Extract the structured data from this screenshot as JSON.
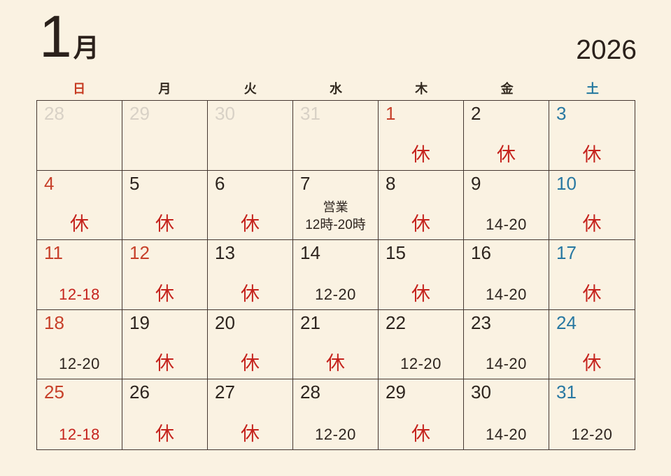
{
  "title": {
    "month": "1",
    "month_label": "月",
    "year": "2026"
  },
  "weekday_header": [
    {
      "label": "日",
      "color": "sunday"
    },
    {
      "label": "月",
      "color": "weekday"
    },
    {
      "label": "火",
      "color": "weekday"
    },
    {
      "label": "水",
      "color": "weekday"
    },
    {
      "label": "木",
      "color": "weekday"
    },
    {
      "label": "金",
      "color": "weekday"
    },
    {
      "label": "土",
      "color": "saturday"
    }
  ],
  "colors": {
    "background": "#faf2e2",
    "grid_border": "#443731",
    "title_text": "#2b211b",
    "text_dark": "#2d241e",
    "date_red": "#c7402a",
    "mark_red": "#c5231d",
    "date_blue": "#2878a2",
    "date_gray": "#d8d1c6",
    "sunday": "#c63a21",
    "weekday": "#32291f",
    "saturday": "#24789f"
  },
  "legend": {
    "closed_label": "休",
    "business_label": "営業"
  },
  "weeks": [
    [
      {
        "day": "28",
        "day_color": "date_gray",
        "type": "prev"
      },
      {
        "day": "29",
        "day_color": "date_gray",
        "type": "prev"
      },
      {
        "day": "30",
        "day_color": "date_gray",
        "type": "prev"
      },
      {
        "day": "31",
        "day_color": "date_gray",
        "type": "prev"
      },
      {
        "day": "1",
        "day_color": "date_red",
        "type": "closed",
        "bottom": "休",
        "bottom_color": "mark_red"
      },
      {
        "day": "2",
        "day_color": "text_dark",
        "type": "closed",
        "bottom": "休",
        "bottom_color": "mark_red"
      },
      {
        "day": "3",
        "day_color": "date_blue",
        "type": "closed",
        "bottom": "休",
        "bottom_color": "mark_red"
      }
    ],
    [
      {
        "day": "4",
        "day_color": "date_red",
        "type": "closed",
        "bottom": "休",
        "bottom_color": "mark_red"
      },
      {
        "day": "5",
        "day_color": "text_dark",
        "type": "closed",
        "bottom": "休",
        "bottom_color": "mark_red"
      },
      {
        "day": "6",
        "day_color": "text_dark",
        "type": "closed",
        "bottom": "休",
        "bottom_color": "mark_red"
      },
      {
        "day": "7",
        "day_color": "text_dark",
        "type": "hours_detail",
        "note": "営業",
        "bottom": "12時-20時",
        "bottom_color": "text_dark"
      },
      {
        "day": "8",
        "day_color": "text_dark",
        "type": "closed",
        "bottom": "休",
        "bottom_color": "mark_red"
      },
      {
        "day": "9",
        "day_color": "text_dark",
        "type": "hours",
        "bottom": "14-20",
        "bottom_color": "text_dark"
      },
      {
        "day": "10",
        "day_color": "date_blue",
        "type": "closed",
        "bottom": "休",
        "bottom_color": "mark_red"
      }
    ],
    [
      {
        "day": "11",
        "day_color": "date_red",
        "type": "hours",
        "bottom": "12-18",
        "bottom_color": "mark_red"
      },
      {
        "day": "12",
        "day_color": "date_red",
        "type": "closed",
        "bottom": "休",
        "bottom_color": "mark_red"
      },
      {
        "day": "13",
        "day_color": "text_dark",
        "type": "closed",
        "bottom": "休",
        "bottom_color": "mark_red"
      },
      {
        "day": "14",
        "day_color": "text_dark",
        "type": "hours",
        "bottom": "12-20",
        "bottom_color": "text_dark"
      },
      {
        "day": "15",
        "day_color": "text_dark",
        "type": "closed",
        "bottom": "休",
        "bottom_color": "mark_red"
      },
      {
        "day": "16",
        "day_color": "text_dark",
        "type": "hours",
        "bottom": "14-20",
        "bottom_color": "text_dark"
      },
      {
        "day": "17",
        "day_color": "date_blue",
        "type": "closed",
        "bottom": "休",
        "bottom_color": "mark_red"
      }
    ],
    [
      {
        "day": "18",
        "day_color": "date_red",
        "type": "hours",
        "bottom": "12-20",
        "bottom_color": "text_dark"
      },
      {
        "day": "19",
        "day_color": "text_dark",
        "type": "closed",
        "bottom": "休",
        "bottom_color": "mark_red"
      },
      {
        "day": "20",
        "day_color": "text_dark",
        "type": "closed",
        "bottom": "休",
        "bottom_color": "mark_red"
      },
      {
        "day": "21",
        "day_color": "text_dark",
        "type": "closed",
        "bottom": "休",
        "bottom_color": "mark_red"
      },
      {
        "day": "22",
        "day_color": "text_dark",
        "type": "hours",
        "bottom": "12-20",
        "bottom_color": "text_dark"
      },
      {
        "day": "23",
        "day_color": "text_dark",
        "type": "hours",
        "bottom": "14-20",
        "bottom_color": "text_dark"
      },
      {
        "day": "24",
        "day_color": "date_blue",
        "type": "closed",
        "bottom": "休",
        "bottom_color": "mark_red"
      }
    ],
    [
      {
        "day": "25",
        "day_color": "date_red",
        "type": "hours",
        "bottom": "12-18",
        "bottom_color": "mark_red"
      },
      {
        "day": "26",
        "day_color": "text_dark",
        "type": "closed",
        "bottom": "休",
        "bottom_color": "mark_red"
      },
      {
        "day": "27",
        "day_color": "text_dark",
        "type": "closed",
        "bottom": "休",
        "bottom_color": "mark_red"
      },
      {
        "day": "28",
        "day_color": "text_dark",
        "type": "hours",
        "bottom": "12-20",
        "bottom_color": "text_dark"
      },
      {
        "day": "29",
        "day_color": "text_dark",
        "type": "closed",
        "bottom": "休",
        "bottom_color": "mark_red"
      },
      {
        "day": "30",
        "day_color": "text_dark",
        "type": "hours",
        "bottom": "14-20",
        "bottom_color": "text_dark"
      },
      {
        "day": "31",
        "day_color": "date_blue",
        "type": "hours",
        "bottom": "12-20",
        "bottom_color": "text_dark"
      }
    ]
  ]
}
